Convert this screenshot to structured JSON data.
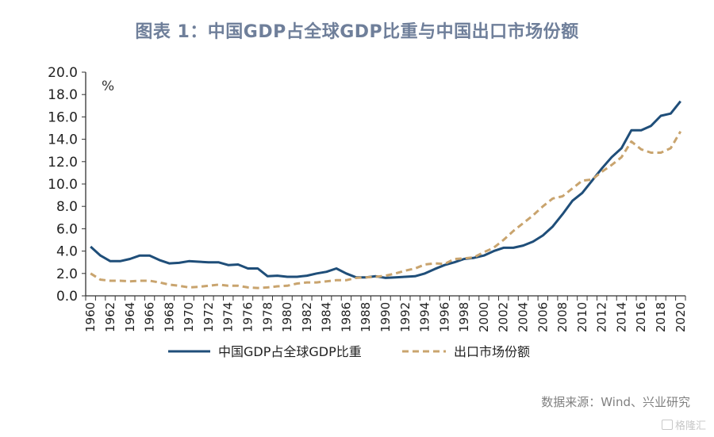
{
  "title": "图表 1：中国GDP占全球GDP比重与中国出口市场份额",
  "source": "数据来源：Wind、兴业研究",
  "watermark": "格隆汇",
  "chart_data": {
    "type": "line",
    "title": "图表 1：中国GDP占全球GDP比重与中国出口市场份额",
    "xlabel": "",
    "ylabel": "%",
    "ylim": [
      0,
      20
    ],
    "yticks": [
      "0.0",
      "2.0",
      "4.0",
      "6.0",
      "8.0",
      "10.0",
      "12.0",
      "14.0",
      "16.0",
      "18.0",
      "20.0"
    ],
    "xtick_labels": [
      "1960",
      "1962",
      "1964",
      "1966",
      "1968",
      "1970",
      "1972",
      "1974",
      "1976",
      "1978",
      "1980",
      "1982",
      "1984",
      "1986",
      "1988",
      "1990",
      "1992",
      "1994",
      "1996",
      "1998",
      "2000",
      "2002",
      "2004",
      "2006",
      "2008",
      "2010",
      "2012",
      "2014",
      "2016",
      "2018",
      "2020"
    ],
    "x": [
      1960,
      1961,
      1962,
      1963,
      1964,
      1965,
      1966,
      1967,
      1968,
      1969,
      1970,
      1971,
      1972,
      1973,
      1974,
      1975,
      1976,
      1977,
      1978,
      1979,
      1980,
      1981,
      1982,
      1983,
      1984,
      1985,
      1986,
      1987,
      1988,
      1989,
      1990,
      1991,
      1992,
      1993,
      1994,
      1995,
      1996,
      1997,
      1998,
      1999,
      2000,
      2001,
      2002,
      2003,
      2004,
      2005,
      2006,
      2007,
      2008,
      2009,
      2010,
      2011,
      2012,
      2013,
      2014,
      2015,
      2016,
      2017,
      2018,
      2019,
      2020
    ],
    "grid": false,
    "legend_position": "bottom",
    "series": [
      {
        "name": "中国GDP占全球GDP比重",
        "color": "#1f4e79",
        "style": "solid",
        "values": [
          4.4,
          3.6,
          3.1,
          3.1,
          3.3,
          3.6,
          3.6,
          3.2,
          2.9,
          2.95,
          3.1,
          3.05,
          3.0,
          3.0,
          2.75,
          2.8,
          2.45,
          2.45,
          1.75,
          1.8,
          1.7,
          1.7,
          1.8,
          2.0,
          2.15,
          2.45,
          2.0,
          1.65,
          1.65,
          1.75,
          1.6,
          1.65,
          1.7,
          1.75,
          2.0,
          2.4,
          2.75,
          3.0,
          3.3,
          3.4,
          3.6,
          4.0,
          4.3,
          4.3,
          4.5,
          4.85,
          5.4,
          6.2,
          7.3,
          8.5,
          9.2,
          10.3,
          11.4,
          12.4,
          13.2,
          14.8,
          14.8,
          15.2,
          16.1,
          16.3,
          17.4
        ]
      },
      {
        "name": "出口市场份额",
        "color": "#c9a46e",
        "style": "dashed",
        "values": [
          2.0,
          1.45,
          1.35,
          1.35,
          1.3,
          1.35,
          1.35,
          1.2,
          1.0,
          0.9,
          0.75,
          0.8,
          0.9,
          1.0,
          0.9,
          0.9,
          0.75,
          0.7,
          0.75,
          0.85,
          0.9,
          1.1,
          1.2,
          1.2,
          1.3,
          1.4,
          1.4,
          1.6,
          1.65,
          1.7,
          1.8,
          2.0,
          2.25,
          2.45,
          2.8,
          2.9,
          2.85,
          3.3,
          3.35,
          3.45,
          3.9,
          4.3,
          5.0,
          5.8,
          6.5,
          7.2,
          8.0,
          8.7,
          8.9,
          9.6,
          10.3,
          10.4,
          11.1,
          11.7,
          12.4,
          13.8,
          13.1,
          12.8,
          12.8,
          13.2,
          14.7
        ]
      }
    ]
  }
}
